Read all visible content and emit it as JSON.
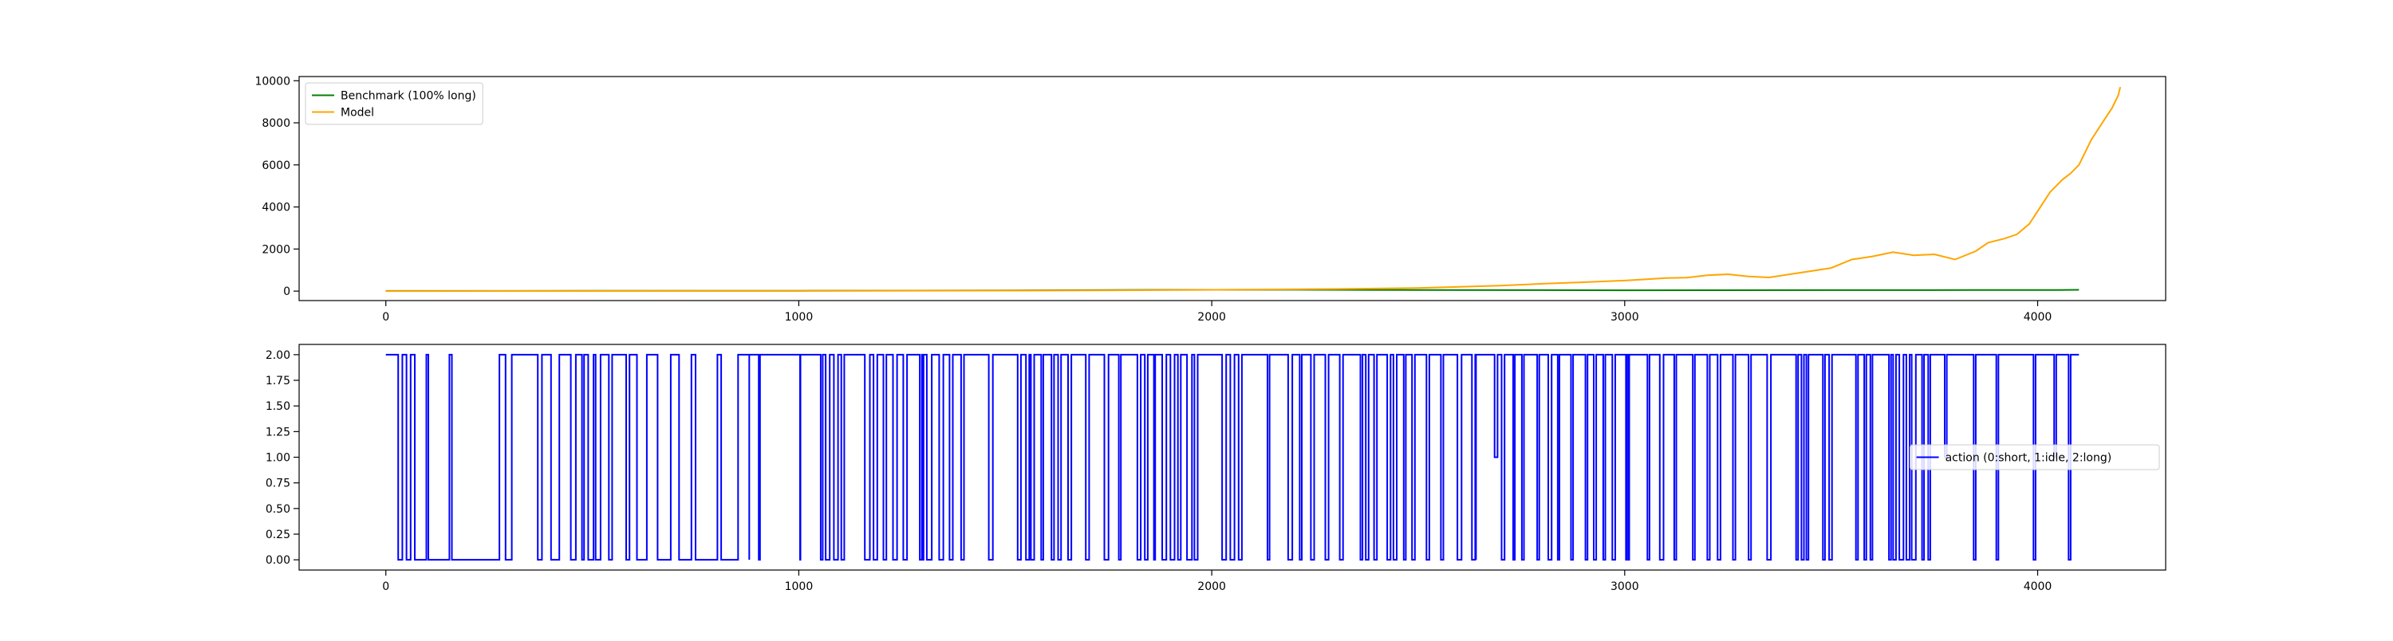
{
  "chart_data": [
    {
      "type": "line",
      "title": "",
      "xlabel": "",
      "ylabel": "",
      "xlim": [
        -210,
        4310
      ],
      "ylim": [
        -450,
        10200
      ],
      "xticks": [
        0,
        1000,
        2000,
        3000,
        4000
      ],
      "yticks": [
        0,
        2000,
        4000,
        6000,
        8000,
        10000
      ],
      "grid": false,
      "legend_position": "top-left",
      "series": [
        {
          "name": "Benchmark (100% long)",
          "color": "#008000",
          "points": [
            [
              0,
              10
            ],
            [
              500,
              13
            ],
            [
              1000,
              18
            ],
            [
              1500,
              30
            ],
            [
              1700,
              45
            ],
            [
              1900,
              60
            ],
            [
              2000,
              62
            ],
            [
              2200,
              64
            ],
            [
              2500,
              55
            ],
            [
              2800,
              45
            ],
            [
              3000,
              40
            ],
            [
              3200,
              42
            ],
            [
              3500,
              45
            ],
            [
              3700,
              48
            ],
            [
              3850,
              55
            ],
            [
              3950,
              50
            ],
            [
              4050,
              55
            ],
            [
              4100,
              60
            ]
          ]
        },
        {
          "name": "Model",
          "color": "#ffa500",
          "points": [
            [
              0,
              0
            ],
            [
              500,
              5
            ],
            [
              1000,
              12
            ],
            [
              1500,
              25
            ],
            [
              1700,
              35
            ],
            [
              1900,
              50
            ],
            [
              2100,
              70
            ],
            [
              2300,
              100
            ],
            [
              2500,
              150
            ],
            [
              2600,
              200
            ],
            [
              2700,
              260
            ],
            [
              2800,
              350
            ],
            [
              2900,
              420
            ],
            [
              3000,
              500
            ],
            [
              3050,
              560
            ],
            [
              3100,
              620
            ],
            [
              3150,
              640
            ],
            [
              3200,
              750
            ],
            [
              3250,
              800
            ],
            [
              3300,
              700
            ],
            [
              3350,
              650
            ],
            [
              3400,
              800
            ],
            [
              3450,
              950
            ],
            [
              3500,
              1100
            ],
            [
              3550,
              1500
            ],
            [
              3600,
              1650
            ],
            [
              3650,
              1850
            ],
            [
              3700,
              1700
            ],
            [
              3750,
              1750
            ],
            [
              3800,
              1500
            ],
            [
              3850,
              1900
            ],
            [
              3880,
              2300
            ],
            [
              3920,
              2500
            ],
            [
              3950,
              2700
            ],
            [
              3980,
              3200
            ],
            [
              4000,
              3800
            ],
            [
              4030,
              4700
            ],
            [
              4060,
              5300
            ],
            [
              4080,
              5600
            ],
            [
              4100,
              6000
            ],
            [
              4130,
              7200
            ],
            [
              4160,
              8100
            ],
            [
              4180,
              8700
            ],
            [
              4195,
              9300
            ],
            [
              4200,
              9700
            ]
          ]
        }
      ]
    },
    {
      "type": "line",
      "title": "",
      "xlabel": "",
      "ylabel": "",
      "xlim": [
        -210,
        4310
      ],
      "ylim": [
        -0.1,
        2.1
      ],
      "xticks": [
        0,
        1000,
        2000,
        3000,
        4000
      ],
      "yticks": [
        0.0,
        0.25,
        0.5,
        0.75,
        1.0,
        1.25,
        1.5,
        1.75,
        2.0
      ],
      "grid": false,
      "legend_position": "center-right",
      "series": [
        {
          "name": "action (0:short, 1:idle, 2:long)",
          "color": "#0000ff",
          "step_x": [
            0,
            30,
            38,
            40,
            50,
            58,
            60,
            70,
            92,
            98,
            103,
            130,
            154,
            160,
            270,
            275,
            290,
            305,
            368,
            378,
            400,
            420,
            448,
            460,
            475,
            480,
            490,
            503,
            508,
            520,
            540,
            548,
            582,
            590,
            608,
            632,
            658,
            690,
            710,
            740,
            750,
            803,
            812,
            853,
            880,
            880,
            903,
            906,
            1003,
            1004,
            1053,
            1058,
            1065,
            1075,
            1085,
            1095,
            1103,
            1110,
            1160,
            1172,
            1181,
            1190,
            1205,
            1212,
            1228,
            1238,
            1253,
            1262,
            1293,
            1298,
            1300,
            1302,
            1310,
            1322,
            1340,
            1350,
            1365,
            1373,
            1393,
            1400,
            1460,
            1470,
            1530,
            1538,
            1550,
            1558,
            1562,
            1570,
            1587,
            1592,
            1612,
            1618,
            1628,
            1635,
            1652,
            1660,
            1695,
            1703,
            1740,
            1750,
            1775,
            1780,
            1820,
            1828,
            1838,
            1845,
            1860,
            1863,
            1880,
            1890,
            1900,
            1910,
            1918,
            1925,
            1940,
            1952,
            1958,
            1966,
            2025,
            2035,
            2045,
            2055,
            2065,
            2073,
            2135,
            2140,
            2185,
            2195,
            2213,
            2218,
            2240,
            2248,
            2275,
            2283,
            2310,
            2318,
            2360,
            2365,
            2373,
            2380,
            2393,
            2400,
            2425,
            2433,
            2440,
            2448,
            2465,
            2470,
            2485,
            2492,
            2520,
            2527,
            2555,
            2561,
            2595,
            2605,
            2630,
            2638,
            2640,
            2640,
            2685,
            2692,
            2702,
            2709,
            2730,
            2734,
            2751,
            2756,
            2788,
            2793,
            2815,
            2823,
            2838,
            2842,
            2870,
            2875,
            2905,
            2910,
            2925,
            2931,
            2948,
            2953,
            2970,
            2977,
            3003,
            3006,
            3010,
            3011,
            3055,
            3060,
            3085,
            3094,
            3120,
            3125,
            3165,
            3170,
            3200,
            3206,
            3225,
            3232,
            3262,
            3268,
            3300,
            3306,
            3345,
            3354,
            3415,
            3420,
            3428,
            3434,
            3440,
            3445,
            3480,
            3485,
            3495,
            3502,
            3560,
            3565,
            3580,
            3585,
            3595,
            3600,
            3640,
            3645,
            3650,
            3657,
            3665,
            3675,
            3682,
            3690,
            3695,
            3705,
            3720,
            3725,
            3735,
            3740,
            3775,
            3780,
            3845,
            3850,
            3900,
            3905,
            3990,
            3995,
            4040,
            4045,
            4075,
            4080,
            4100
          ],
          "step_y": [
            2,
            0,
            0,
            2,
            0,
            0,
            2,
            0,
            0,
            2,
            0,
            0,
            2,
            0,
            0,
            2,
            0,
            2,
            0,
            2,
            0,
            2,
            0,
            2,
            0,
            2,
            0,
            2,
            0,
            2,
            0,
            2,
            0,
            2,
            0,
            2,
            0,
            2,
            0,
            2,
            0,
            2,
            0,
            2,
            0,
            2,
            0,
            2,
            0,
            2,
            0,
            2,
            0,
            2,
            0,
            2,
            0,
            2,
            0,
            2,
            0,
            2,
            0,
            2,
            0,
            2,
            0,
            2,
            0,
            2,
            0,
            2,
            0,
            2,
            0,
            2,
            0,
            2,
            0,
            2,
            0,
            2,
            0,
            2,
            0,
            2,
            0,
            2,
            0,
            2,
            0,
            2,
            0,
            2,
            0,
            2,
            0,
            2,
            0,
            2,
            0,
            2,
            0,
            2,
            0,
            2,
            0,
            2,
            0,
            2,
            0,
            2,
            0,
            2,
            0,
            2,
            0,
            2,
            0,
            2,
            0,
            2,
            0,
            2,
            0,
            2,
            0,
            2,
            0,
            2,
            0,
            2,
            0,
            2,
            0,
            2,
            0,
            2,
            0,
            2,
            0,
            2,
            0,
            2,
            0,
            2,
            0,
            2,
            0,
            2,
            0,
            2,
            0,
            2,
            0,
            2,
            0,
            2,
            0,
            2,
            1,
            2,
            0,
            2,
            0,
            2,
            0,
            2,
            0,
            2,
            0,
            2,
            0,
            2,
            0,
            2,
            0,
            2,
            0,
            2,
            0,
            2,
            0,
            2,
            0,
            2,
            0,
            2,
            0,
            2,
            0,
            2,
            0,
            2,
            0,
            2,
            0,
            2,
            0,
            2,
            0,
            2,
            0,
            2,
            0,
            2,
            0,
            2,
            0,
            2,
            0,
            2,
            0,
            2,
            0,
            2,
            0,
            2,
            0,
            2,
            0,
            2,
            0,
            2,
            0,
            2,
            0,
            2,
            0,
            2,
            0,
            2,
            0,
            2,
            0,
            2,
            1,
            2,
            0,
            2,
            0,
            2,
            0,
            2,
            1,
            2,
            0,
            2,
            2
          ]
        }
      ]
    }
  ]
}
